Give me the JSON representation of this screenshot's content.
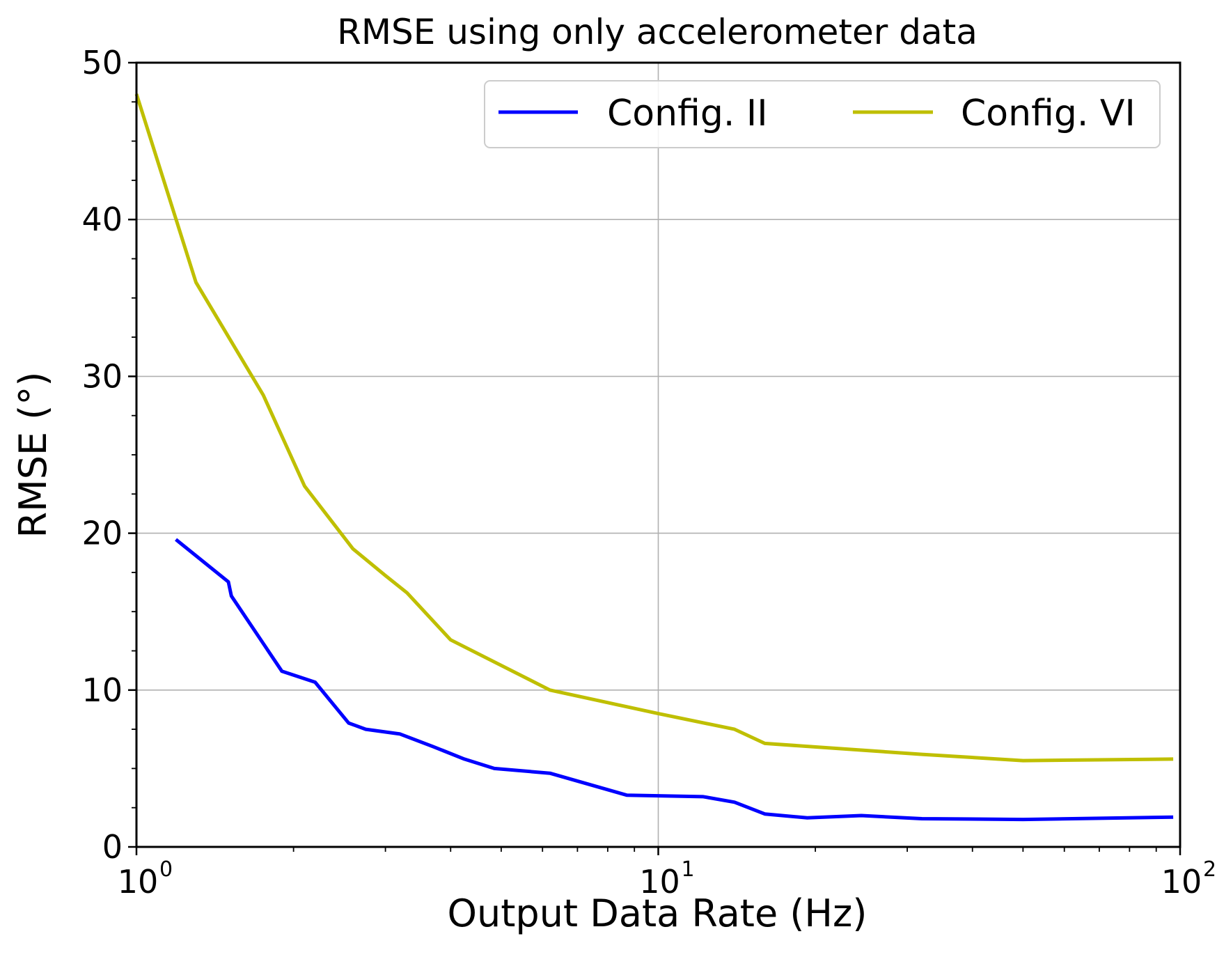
{
  "chart_data": {
    "type": "line",
    "title": "RMSE using only accelerometer data",
    "xlabel": "Output Data Rate (Hz)",
    "ylabel": "RMSE (°)",
    "xscale": "log",
    "xlim": [
      1,
      100
    ],
    "ylim": [
      0,
      50
    ],
    "yticks": [
      0,
      10,
      20,
      30,
      40,
      50
    ],
    "yticks_minor_step": 2.5,
    "xticks": [
      {
        "value": 1,
        "base": "10",
        "exp": "0"
      },
      {
        "value": 10,
        "base": "10",
        "exp": "1"
      },
      {
        "value": 100,
        "base": "10",
        "exp": "2"
      }
    ],
    "grid": true,
    "legend_position": "top-right",
    "series": [
      {
        "name": "Config. II",
        "color": "#0000ff",
        "x": [
          1.19,
          1.5,
          1.52,
          1.9,
          2.2,
          2.55,
          2.75,
          3.2,
          3.7,
          4.25,
          4.85,
          6.2,
          8.7,
          12.2,
          14.0,
          16.0,
          19.3,
          24.5,
          32.0,
          50.0,
          97.0
        ],
        "y": [
          19.6,
          16.9,
          16.0,
          11.2,
          10.5,
          7.9,
          7.5,
          7.2,
          6.4,
          5.6,
          5.0,
          4.7,
          3.3,
          3.2,
          2.85,
          2.1,
          1.85,
          2.0,
          1.8,
          1.75,
          1.9
        ]
      },
      {
        "name": "Config. VI",
        "color": "#bfbf00",
        "x": [
          1.0,
          1.3,
          1.75,
          2.1,
          2.6,
          3.0,
          3.3,
          4.0,
          6.2,
          8.0,
          10.0,
          14.0,
          16.0,
          32.0,
          50.0,
          97.0
        ],
        "y": [
          48.0,
          36.0,
          28.8,
          23.0,
          19.0,
          17.3,
          16.2,
          13.2,
          10.0,
          9.2,
          8.5,
          7.5,
          6.6,
          5.9,
          5.5,
          5.6
        ]
      }
    ]
  }
}
